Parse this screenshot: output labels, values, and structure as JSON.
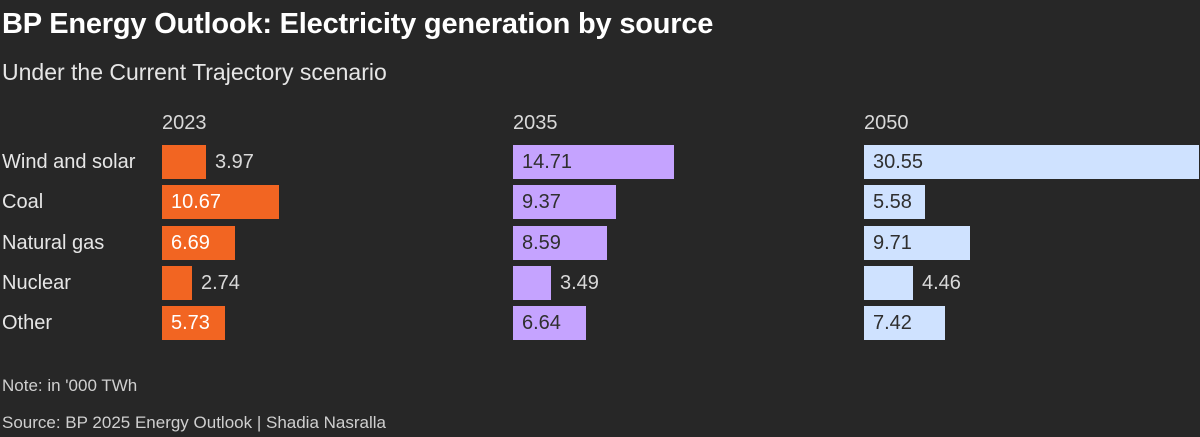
{
  "header": {
    "title": "BP Energy Outlook: Electricity generation by source",
    "subtitle": "Under the Current Trajectory scenario"
  },
  "footer": {
    "note": "Note: in '000 TWh",
    "source": "Source: BP 2025 Energy Outlook | Shadia Nasralla"
  },
  "chart_data": {
    "type": "bar",
    "orientation": "horizontal",
    "layout": "small-multiples",
    "title": "BP Energy Outlook: Electricity generation by source",
    "subtitle": "Under the Current Trajectory scenario",
    "categories": [
      "Wind and solar",
      "Coal",
      "Natural gas",
      "Nuclear",
      "Other"
    ],
    "series": [
      {
        "name": "2023",
        "color": "#f26522",
        "values": [
          3.97,
          10.67,
          6.69,
          2.74,
          5.73
        ]
      },
      {
        "name": "2035",
        "color": "#c5a3ff",
        "values": [
          14.71,
          9.37,
          8.59,
          3.49,
          6.64
        ]
      },
      {
        "name": "2050",
        "color": "#cfe2ff",
        "values": [
          30.55,
          5.58,
          9.71,
          4.46,
          7.42
        ]
      }
    ],
    "value_labels": {
      "2023": [
        "3.97",
        "10.67",
        "6.69",
        "2.74",
        "5.73"
      ],
      "2035": [
        "14.71",
        "9.37",
        "8.59",
        "3.49",
        "6.64"
      ],
      "2050": [
        "30.55",
        "5.58",
        "9.71",
        "4.46",
        "7.42"
      ]
    },
    "grid": false,
    "legend": "none"
  }
}
